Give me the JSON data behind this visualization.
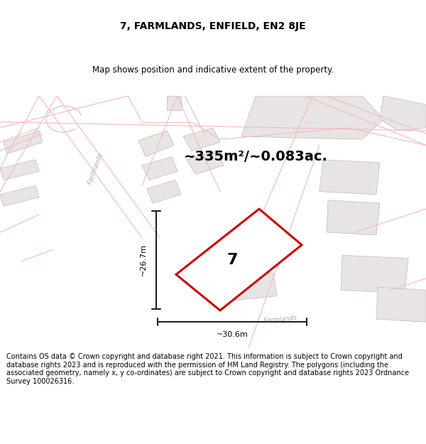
{
  "title": "7, FARMLANDS, ENFIELD, EN2 8JE",
  "subtitle": "Map shows position and indicative extent of the property.",
  "area_text": "~335m²/~0.083ac.",
  "label_number": "7",
  "dim_horizontal": "~30.6m",
  "dim_vertical": "~26.7m",
  "footer": "Contains OS data © Crown copyright and database right 2021. This information is subject to Crown copyright and database rights 2023 and is reproduced with the permission of HM Land Registry. The polygons (including the associated geometry, namely x, y co-ordinates) are subject to Crown copyright and database rights 2023 Ordnance Survey 100026316.",
  "bg_color": "#ffffff",
  "map_bg": "#ffffff",
  "road_color": "#f5b8b8",
  "building_fill": "#e8e4e4",
  "building_edge": "#c8c0c0",
  "plot_fill": "#ffffff",
  "plot_edge": "#cc0000",
  "dim_line_color": "#222222",
  "road_label_color": "#b0a8a8",
  "figsize": [
    6.0,
    6.25
  ],
  "dpi": 100,
  "title_fontsize": 10,
  "subtitle_fontsize": 8.5,
  "area_fontsize": 14,
  "label_fontsize": 18,
  "dim_fontsize": 8,
  "footer_fontsize": 7
}
